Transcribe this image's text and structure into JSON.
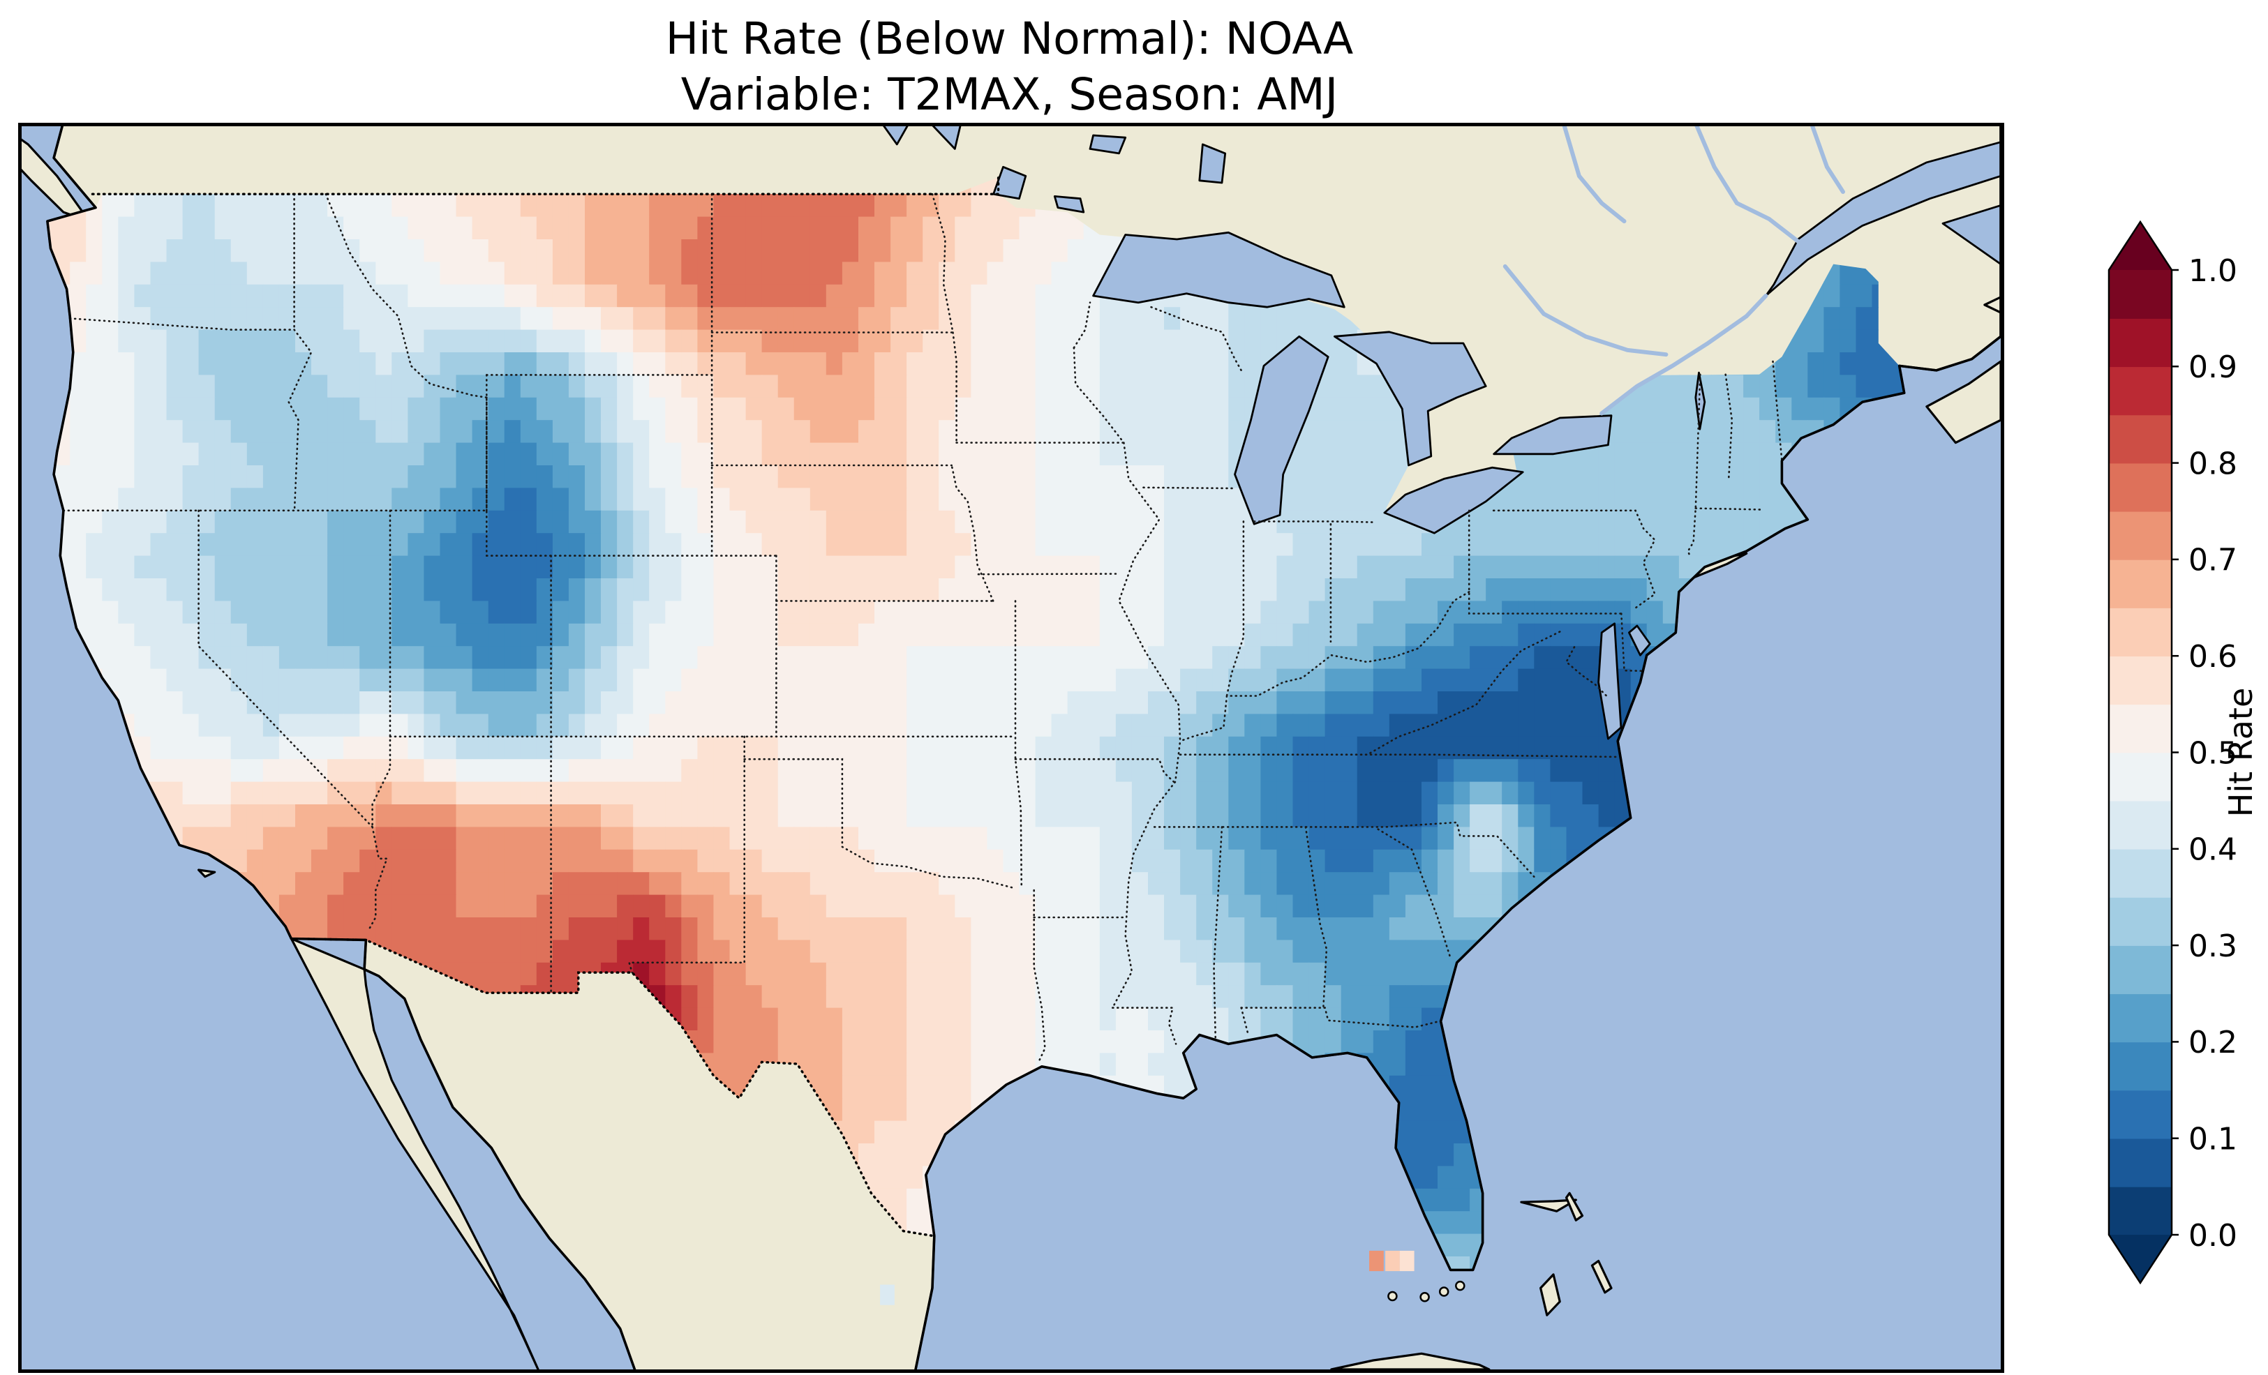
{
  "header": {
    "title_line1": "Hit Rate (Below Normal): NOAA",
    "title_line2": "Variable: T2MAX, Season: AMJ"
  },
  "chart_data": {
    "type": "heatmap",
    "title": "Hit Rate (Below Normal): NOAA",
    "subtitle": "Variable: T2MAX, Season: AMJ",
    "metric": "Hit Rate (Below Normal)",
    "dataset": "NOAA",
    "variable": "T2MAX",
    "season": "AMJ",
    "colorbar": {
      "label": "Hit Rate",
      "ticks": [
        0.0,
        0.1,
        0.2,
        0.3,
        0.4,
        0.5,
        0.6,
        0.7,
        0.8,
        0.9,
        1.0
      ],
      "tick_labels": [
        "0.0",
        "0.1",
        "0.2",
        "0.3",
        "0.4",
        "0.5",
        "0.6",
        "0.7",
        "0.8",
        "0.9",
        "1.0"
      ],
      "extend": "both"
    },
    "colormap": {
      "style": "RdBu_r",
      "vmin": 0.0,
      "vmax": 1.0,
      "level_step": 0.05,
      "anchors": [
        "#053061",
        "#2166ac",
        "#4393c3",
        "#92c5de",
        "#d1e5f0",
        "#f7f7f7",
        "#fddbc7",
        "#f4a582",
        "#d6604d",
        "#b2182b",
        "#67001f"
      ]
    },
    "map_colors": {
      "ocean": "#a2bcdf",
      "land": "#edead6",
      "coastline": "#000000",
      "borders": "#1a1a1a"
    },
    "extent": {
      "lon_min": -125.5,
      "lon_max": -64.0,
      "lat_min": 23.0,
      "lat_max": 50.5
    },
    "grid": {
      "lon_cell_start": -125,
      "lon_cell_size": 2,
      "lat_cell_start": 50,
      "lat_cell_size": 2,
      "values": [
        [
          0.6,
          0.45,
          0.4,
          0.45,
          0.45,
          0.5,
          0.55,
          0.6,
          0.65,
          0.7,
          0.75,
          0.8,
          0.8,
          0.7,
          0.6,
          0.55,
          0.5,
          0.45,
          null,
          null,
          null,
          null,
          null,
          null,
          null,
          null,
          null,
          null,
          null,
          null
        ],
        [
          0.55,
          0.4,
          0.35,
          0.4,
          0.4,
          0.45,
          0.5,
          0.55,
          0.65,
          0.7,
          0.8,
          0.8,
          0.75,
          0.65,
          0.55,
          0.5,
          0.45,
          0.4,
          0.4,
          0.4,
          null,
          null,
          null,
          null,
          null,
          null,
          null,
          0.25,
          0.15,
          null
        ],
        [
          0.5,
          0.45,
          0.35,
          0.3,
          0.35,
          0.4,
          0.3,
          0.25,
          0.35,
          0.5,
          0.6,
          0.65,
          0.7,
          0.6,
          0.55,
          0.5,
          0.45,
          0.4,
          0.4,
          0.35,
          0.4,
          null,
          null,
          null,
          0.35,
          0.3,
          0.3,
          0.2,
          0.1,
          null
        ],
        [
          0.5,
          0.45,
          0.4,
          0.35,
          0.3,
          0.35,
          0.25,
          0.15,
          0.25,
          0.45,
          0.55,
          0.6,
          0.65,
          0.6,
          0.5,
          0.5,
          0.45,
          0.45,
          0.4,
          0.35,
          0.35,
          0.4,
          0.35,
          0.35,
          0.3,
          0.35,
          0.35,
          0.3,
          null,
          null
        ],
        [
          0.45,
          0.4,
          0.35,
          0.3,
          0.3,
          0.25,
          0.15,
          0.1,
          0.2,
          0.4,
          0.5,
          0.55,
          0.6,
          0.6,
          0.55,
          0.5,
          0.5,
          0.45,
          0.45,
          0.4,
          0.35,
          0.35,
          0.3,
          0.3,
          0.3,
          0.3,
          0.35,
          null,
          null,
          null
        ],
        [
          0.5,
          0.45,
          0.4,
          0.35,
          0.3,
          0.25,
          0.2,
          0.15,
          0.3,
          0.45,
          0.5,
          0.55,
          0.55,
          0.5,
          0.5,
          0.5,
          0.5,
          0.45,
          0.4,
          0.35,
          0.3,
          0.2,
          0.15,
          0.1,
          0.1,
          0.25,
          null,
          null,
          null,
          null
        ],
        [
          0.55,
          0.5,
          0.45,
          0.4,
          0.45,
          0.5,
          0.35,
          0.3,
          0.4,
          0.5,
          0.55,
          0.55,
          0.5,
          0.5,
          0.45,
          0.45,
          0.4,
          0.35,
          0.25,
          0.15,
          0.1,
          0.05,
          0.05,
          0.05,
          0.05,
          null,
          null,
          null,
          null,
          null
        ],
        [
          0.6,
          0.6,
          0.6,
          0.65,
          0.7,
          0.75,
          0.75,
          0.7,
          0.7,
          0.6,
          0.6,
          0.55,
          0.55,
          0.5,
          0.5,
          0.45,
          0.45,
          0.35,
          0.25,
          0.15,
          0.1,
          0.1,
          0.45,
          0.15,
          0.1,
          null,
          null,
          null,
          null,
          null
        ],
        [
          null,
          null,
          0.6,
          0.7,
          0.75,
          0.8,
          0.75,
          0.75,
          0.8,
          0.85,
          0.7,
          0.65,
          0.6,
          0.6,
          0.55,
          0.5,
          0.45,
          0.4,
          0.3,
          0.2,
          0.2,
          0.3,
          0.3,
          0.2,
          null,
          null,
          null,
          null,
          null,
          null
        ],
        [
          null,
          null,
          null,
          null,
          null,
          null,
          null,
          null,
          0.85,
          0.95,
          0.75,
          0.7,
          0.65,
          0.6,
          0.55,
          0.5,
          0.45,
          0.45,
          0.4,
          0.3,
          0.25,
          0.15,
          0.15,
          null,
          null,
          null,
          null,
          null,
          null,
          null
        ],
        [
          null,
          null,
          null,
          null,
          null,
          null,
          null,
          null,
          null,
          null,
          0.7,
          0.7,
          0.65,
          0.6,
          0.55,
          0.5,
          0.45,
          0.45,
          null,
          null,
          null,
          0.1,
          0.1,
          null,
          null,
          null,
          null,
          null,
          null,
          null
        ],
        [
          null,
          null,
          null,
          null,
          null,
          null,
          null,
          null,
          null,
          null,
          null,
          null,
          null,
          0.55,
          0.5,
          null,
          null,
          null,
          null,
          null,
          null,
          0.15,
          0.2,
          null,
          null,
          null,
          null,
          null,
          null,
          null
        ],
        [
          null,
          null,
          null,
          null,
          null,
          null,
          null,
          null,
          null,
          null,
          null,
          null,
          null,
          null,
          null,
          null,
          null,
          null,
          null,
          null,
          null,
          0.35,
          0.3,
          null,
          null,
          null,
          null,
          null,
          null,
          null
        ]
      ]
    },
    "stray_cells": [
      {
        "lon": -83.4,
        "lat": 25.4,
        "value": 0.72
      },
      {
        "lon": -82.9,
        "lat": 25.4,
        "value": 0.62
      },
      {
        "lon": -82.45,
        "lat": 25.4,
        "value": 0.55
      },
      {
        "lon": -98.6,
        "lat": 24.65,
        "value": 0.4
      }
    ]
  }
}
